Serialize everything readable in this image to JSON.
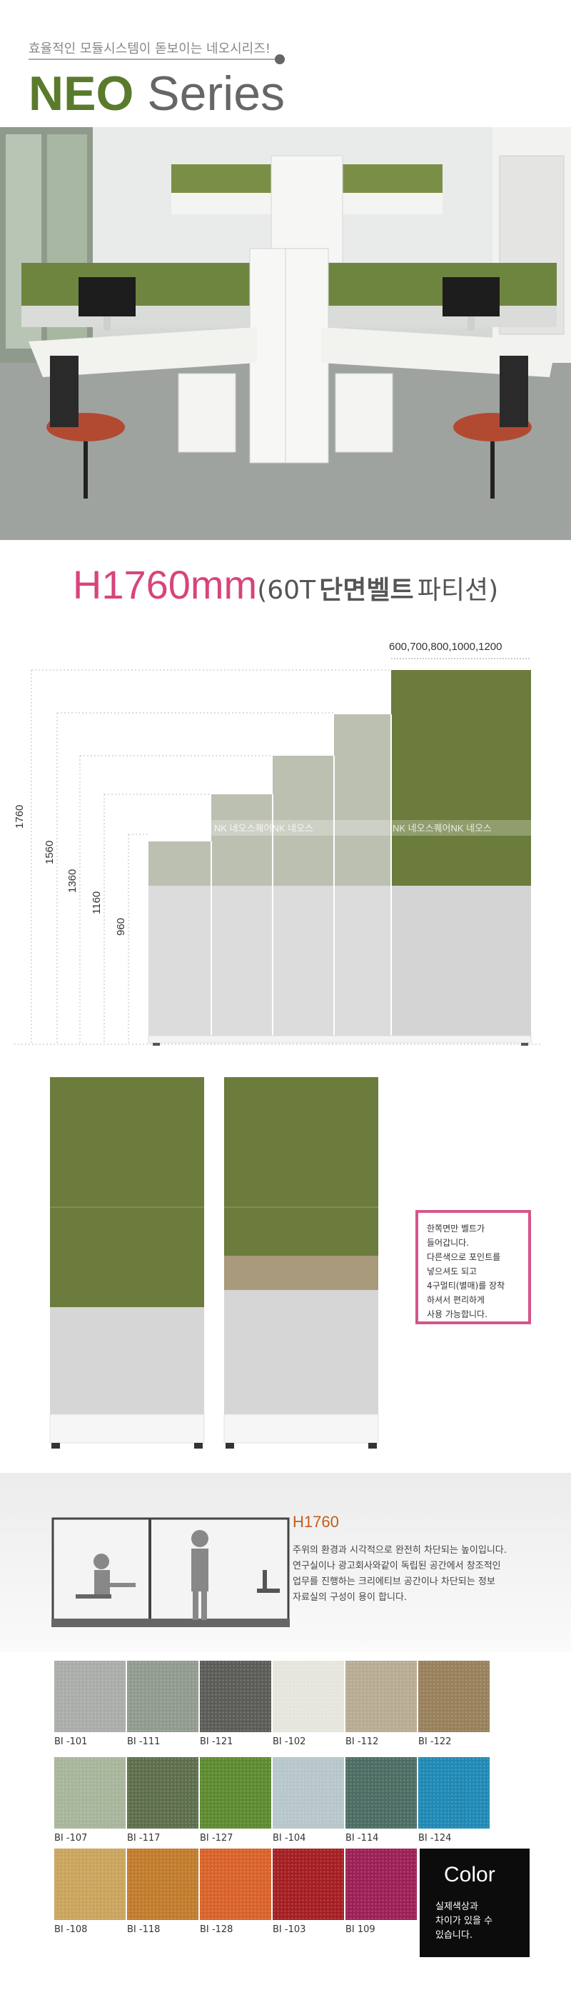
{
  "header": {
    "tagline": "효율적인 모듈시스템이 돋보이는 네오시리즈!",
    "title_neo": "NEO",
    "title_series": "Series"
  },
  "section": {
    "title_main": "H1760mm",
    "title_sub": "(60T",
    "title_desc": "단면벨트",
    "title_desc2": "파티션)"
  },
  "diagram": {
    "width_label": "600,700,800,1000,1200",
    "heights": [
      "1760",
      "1560",
      "1360",
      "1160",
      "960"
    ],
    "watermark": "NK 네오스퀘어NK 네오스"
  },
  "callout": {
    "lines": [
      "한쪽면만 벨트가",
      "들어갑니다.",
      "다른색으로 포인트를",
      "넣으셔도 되고",
      "4구멀티(별매)를 장착",
      "하셔서 편리하게",
      "사용 가능합니다."
    ]
  },
  "info": {
    "title": "H1760",
    "lines": [
      "주위의 환경과 시각적으로 완전히 차단되는 높이입니다.",
      "연구실이나 광고회사와같이 독립된 공간에서 창조적인",
      "업무를 진행하는 크리에티브 공간이나 차단되는 정보",
      "자료실의 구성이 용이 합니다."
    ]
  },
  "swatches": [
    {
      "code": "BI -101",
      "color": "#a9aca8"
    },
    {
      "code": "BI -111",
      "color": "#919a8f"
    },
    {
      "code": "BI -121",
      "color": "#5b5c58"
    },
    {
      "code": "BI -102",
      "color": "#e6e5dd"
    },
    {
      "code": "BI -112",
      "color": "#b8ab94"
    },
    {
      "code": "BI -122",
      "color": "#98805a"
    },
    {
      "code": "BI -107",
      "color": "#a7b59a"
    },
    {
      "code": "BI -117",
      "color": "#5d6e4c"
    },
    {
      "code": "BI -127",
      "color": "#5d8a30"
    },
    {
      "code": "BI -104",
      "color": "#b6c6ca"
    },
    {
      "code": "BI -114",
      "color": "#4c6d63"
    },
    {
      "code": "BI -124",
      "color": "#1f89b4"
    },
    {
      "code": "BI -108",
      "color": "#c9a45c"
    },
    {
      "code": "BI -118",
      "color": "#c07b2c"
    },
    {
      "code": "BI -128",
      "color": "#d8622a"
    },
    {
      "code": "BI -103",
      "color": "#a51e22"
    },
    {
      "code": "BI 109",
      "color": "#9c1f55"
    }
  ],
  "colorbox": {
    "title": "Color",
    "desc_lines": [
      "실제색상과",
      "차이가 있을 수",
      "있습니다."
    ]
  },
  "colors": {
    "olive": "#6b7c3d",
    "sage": "#bfc3b4",
    "grey_panel": "#d9d9d9",
    "pink": "#d8447c",
    "orange": "#c65c1a"
  }
}
